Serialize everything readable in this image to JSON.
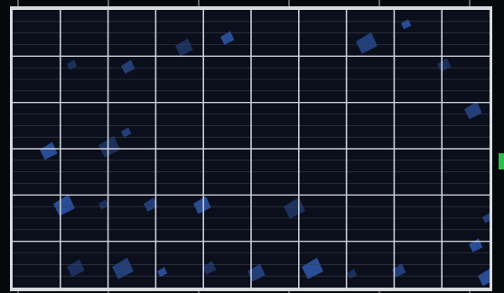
{
  "scene": {
    "subject": "solar-panel",
    "cell_grid": {
      "columns": 10,
      "rows": 6
    },
    "colors": {
      "frame": "#d6dadf",
      "cell": "#0b0f1c",
      "bus_bar": "#c9ced6",
      "finger": "#3c4250",
      "crystal_highlight": "#3a6fd8",
      "background": "#050608",
      "green_edge": "#2fbf4a"
    }
  }
}
